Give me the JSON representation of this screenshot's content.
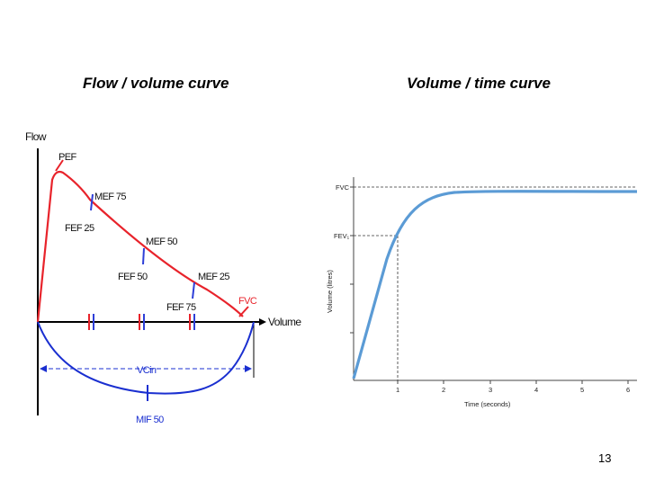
{
  "slide": {
    "title_left": "Flow / volume curve",
    "title_right": "Volume / time curve",
    "page_number": "13"
  },
  "flow_volume": {
    "y_axis_label": "Flow",
    "x_axis_label": "Volume",
    "labels": {
      "pef": "PEF",
      "mef75": "MEF 75",
      "fef25": "FEF 25",
      "mef50": "MEF 50",
      "fef50": "FEF 50",
      "mef25": "MEF 25",
      "fef75": "FEF 75",
      "fvc": "FVC",
      "vcin": "VCin",
      "mif50": "MIF 50"
    },
    "colors": {
      "expiration": "#e8232b",
      "inspiration": "#1a2fd0",
      "markers": "#2e3fd8",
      "axis": "#000000"
    }
  },
  "volume_time": {
    "x_axis_label": "Time (seconds)",
    "y_axis_label": "Volume (litres)",
    "x_ticks": [
      "1",
      "2",
      "3",
      "4",
      "5",
      "6"
    ],
    "fvc_label": "FVC",
    "fev1_label": "FEV₁",
    "colors": {
      "curve": "#5b9bd5",
      "axis": "#333333"
    }
  }
}
